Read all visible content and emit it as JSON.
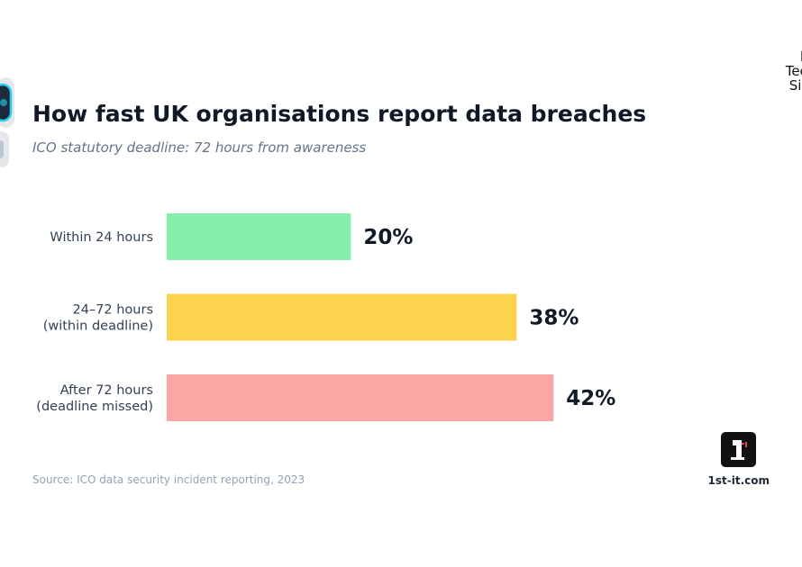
{
  "brand_fragments": [
    "Ma",
    "Techno",
    "Sim"
  ],
  "title": "How fast UK organisations report data breaches",
  "subtitle": "ICO statutory deadline: 72 hours from awareness",
  "source": "Source: ICO data security incident reporting, 2023",
  "site": "1st-it.com",
  "chart_data": {
    "type": "bar",
    "orientation": "horizontal",
    "categories": [
      [
        "Within 24 hours"
      ],
      [
        "24–72 hours",
        "(within deadline)"
      ],
      [
        "After 72 hours",
        "(deadline missed)"
      ]
    ],
    "values": [
      20,
      38,
      42
    ],
    "value_labels": [
      "20%",
      "38%",
      "42%"
    ],
    "colors": [
      "#86efac",
      "#fcd34d",
      "#fca5a5"
    ],
    "xlim": [
      0,
      42
    ],
    "grid": false,
    "legend": "none"
  },
  "colors": {
    "title": "#111827",
    "subtitle": "#64748b",
    "category_label": "#334155",
    "value_label": "#111827",
    "source": "#94a3b8"
  }
}
